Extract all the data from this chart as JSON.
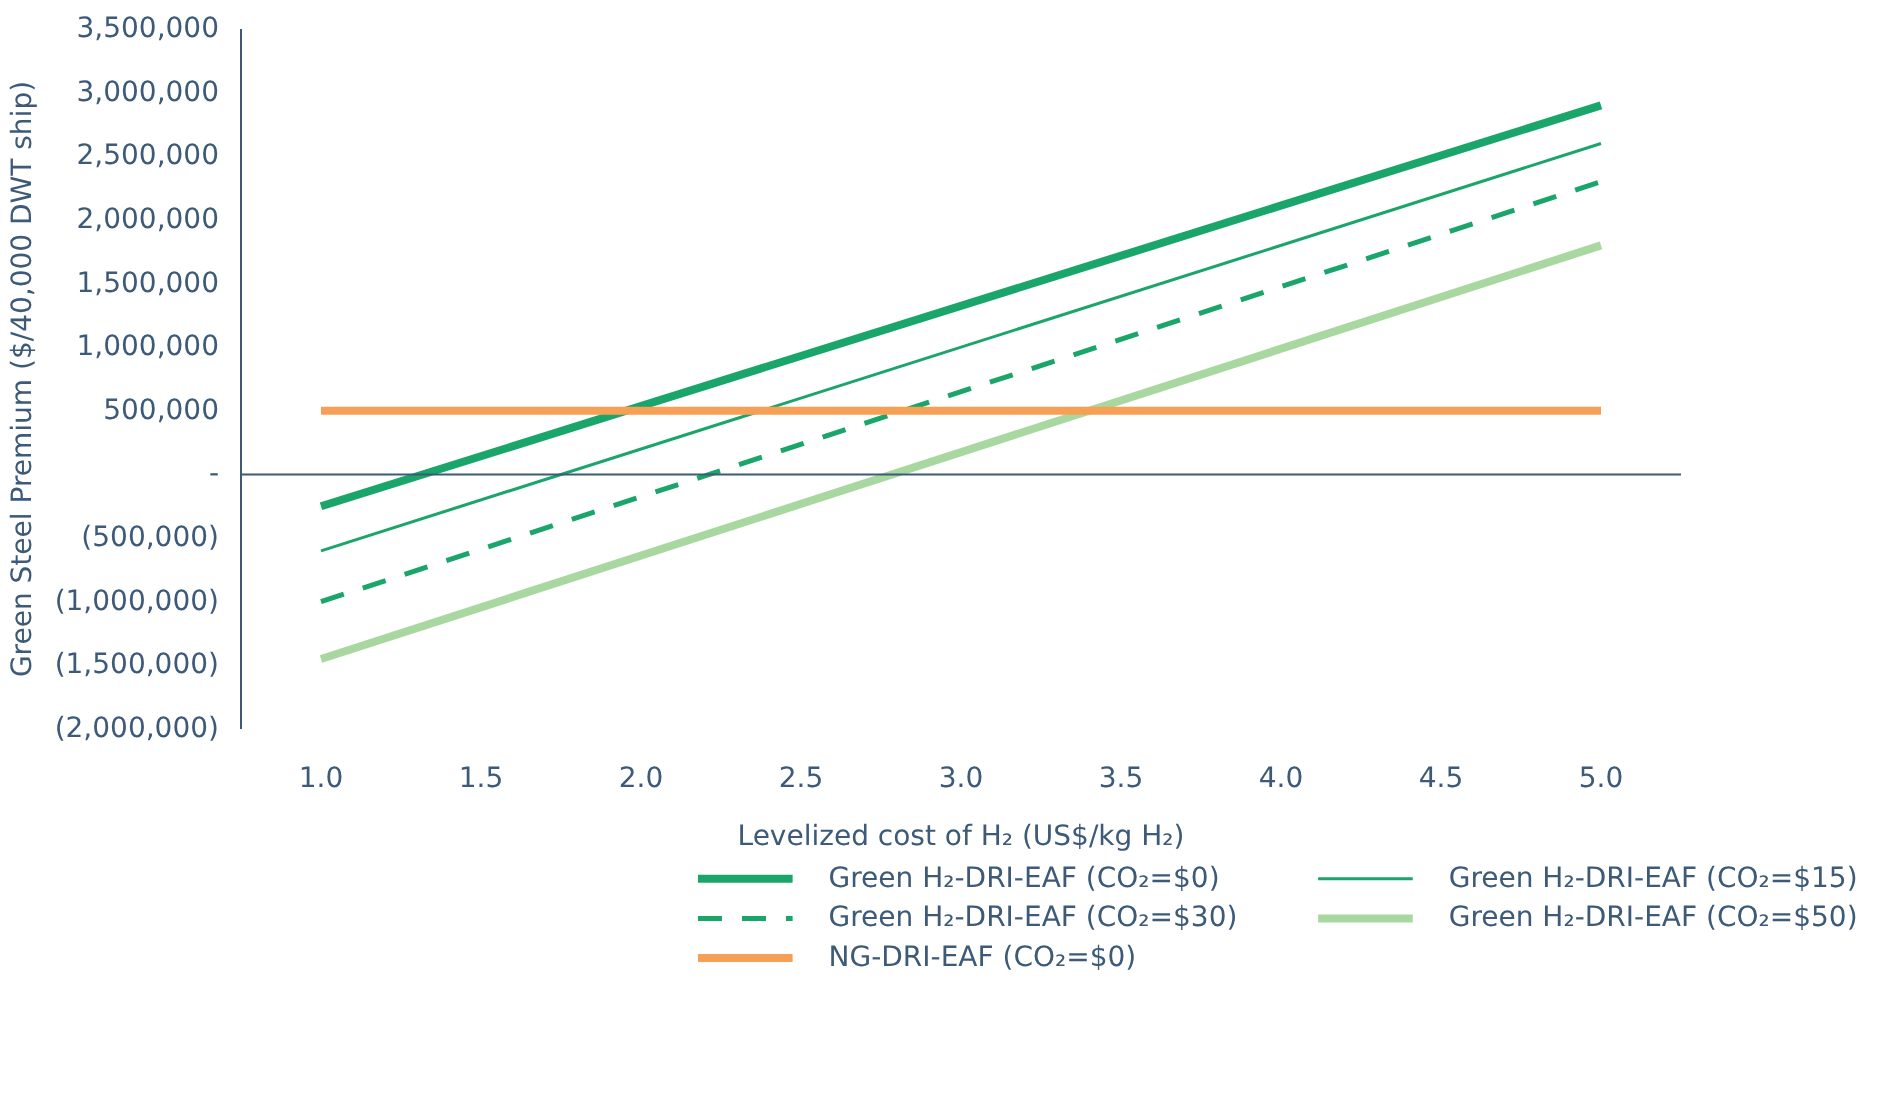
{
  "chart_data": {
    "type": "line",
    "xlabel": "Levelized cost of H₂ (US$/kg H₂)",
    "ylabel": "Green Steel Premium ($/40,000 DWT ship)",
    "x": [
      1.0,
      5.0
    ],
    "series": [
      {
        "name": "Green H₂-DRI-EAF (CO₂=$0)",
        "color": "#1aa56a",
        "values": [
          -250000,
          2900000
        ],
        "line_style": "solid"
      },
      {
        "name": "Green H₂-DRI-EAF (CO₂=$15)",
        "color": "#1aa56a",
        "values": [
          -600000,
          2600000
        ],
        "line_style": "solid"
      },
      {
        "name": "Green H₂-DRI-EAF (CO₂=$30)",
        "color": "#1aa56a",
        "values": [
          -1000000,
          2300000
        ],
        "line_style": "dashed"
      },
      {
        "name": "Green H₂-DRI-EAF (CO₂=$50)",
        "color": "#a8d8a0",
        "values": [
          -1450000,
          1800000
        ],
        "line_style": "solid"
      },
      {
        "name": "NG-DRI-EAF (CO₂=$0)",
        "color": "#f7a055",
        "values": [
          500000,
          500000
        ],
        "line_style": "solid"
      }
    ],
    "xlim": [
      0.75,
      5.25
    ],
    "xticks": [
      {
        "value": 1,
        "label": "1.0"
      },
      1.5,
      {
        "value": 2,
        "label": "2.0"
      },
      2.5,
      {
        "value": 3,
        "label": "3.0"
      },
      3.5,
      {
        "value": 4,
        "label": "4.0"
      },
      4.5,
      {
        "value": 5,
        "label": "5.0"
      }
    ],
    "ylim": [
      -2000000,
      3500000
    ],
    "yticks": [
      {
        "value": -2000000,
        "label": "(2,000,000)"
      },
      {
        "value": -1500000,
        "label": "(1,500,000)"
      },
      {
        "value": -1000000,
        "label": "(1,000,000)"
      },
      {
        "value": -500000,
        "label": "(500,000)"
      },
      {
        "value": 0,
        "label": "-"
      },
      {
        "value": 500000,
        "label": "500,000"
      },
      {
        "value": 1000000,
        "label": "1,000,000"
      },
      {
        "value": 1500000,
        "label": "1,500,000"
      },
      {
        "value": 2000000,
        "label": "2,000,000"
      },
      {
        "value": 2500000,
        "label": "2,500,000"
      },
      {
        "value": 3000000,
        "label": "3,000,000"
      },
      {
        "value": 3500000,
        "label": "3,500,000"
      }
    ],
    "ref_lines": [
      {
        "axis": "y",
        "value": 0,
        "color": "#3d5a78"
      }
    ],
    "grid": false,
    "legend": "bottom",
    "marker": "none"
  }
}
